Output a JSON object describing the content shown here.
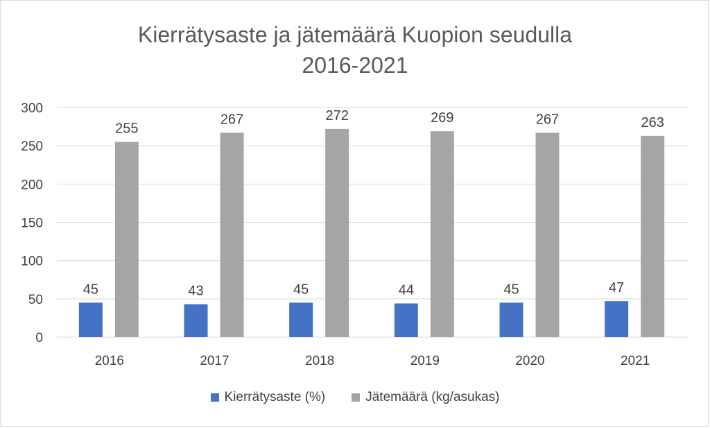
{
  "chart_data": {
    "type": "bar",
    "title_line1": "Kierrätysaste ja jätemäärä Kuopion seudulla",
    "title_line2": "2016-2021",
    "categories": [
      "2016",
      "2017",
      "2018",
      "2019",
      "2020",
      "2021"
    ],
    "series": [
      {
        "name": "Kierrätysaste (%)",
        "color": "#4472c4",
        "values": [
          45,
          43,
          45,
          44,
          45,
          47
        ]
      },
      {
        "name": "Jätemäärä (kg/asukas)",
        "color": "#a5a5a5",
        "values": [
          255,
          267,
          272,
          269,
          267,
          263
        ]
      }
    ],
    "ylim": [
      0,
      300
    ],
    "yticks": [
      0,
      50,
      100,
      150,
      200,
      250,
      300
    ],
    "grid": true,
    "legend": "bottom"
  }
}
